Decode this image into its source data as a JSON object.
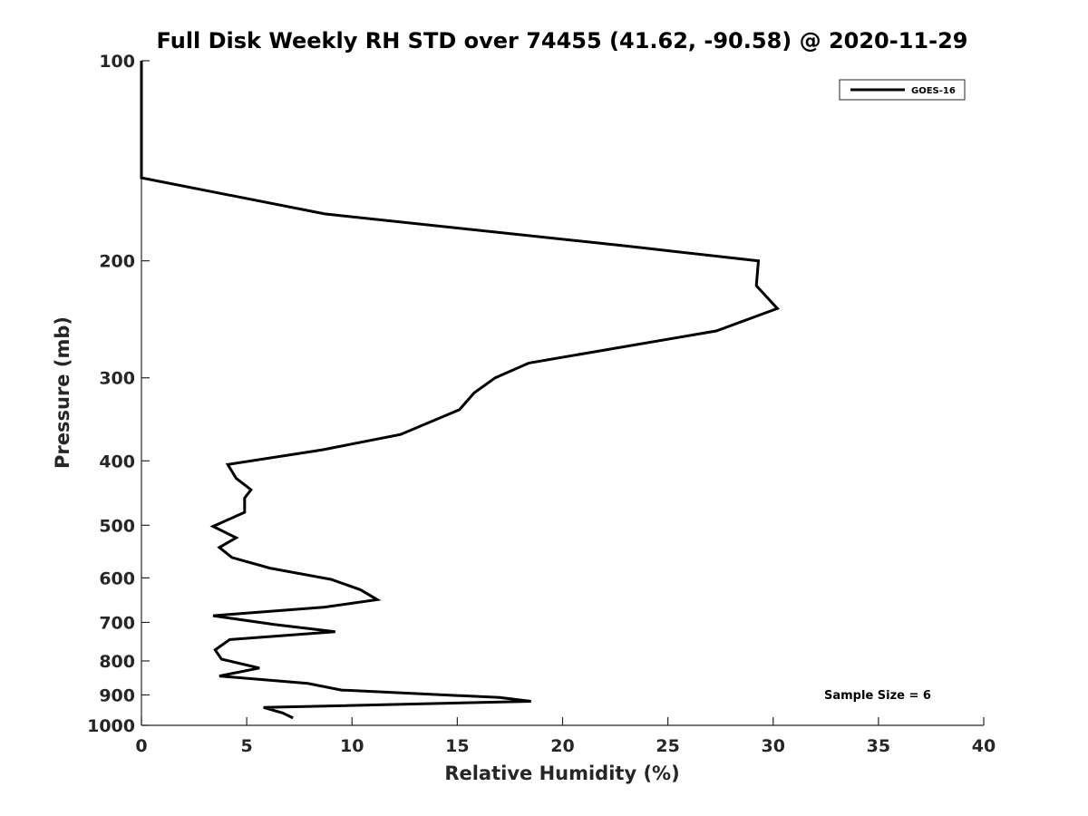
{
  "chart_data": {
    "type": "line",
    "title": "Full Disk Weekly RH STD over 74455 (41.62, -90.58) @ 2020-11-29",
    "xlabel": "Relative Humidity (%)",
    "ylabel": "Pressure (mb)",
    "xlim": [
      0,
      40
    ],
    "ylim": [
      100,
      1000
    ],
    "yscale": "log",
    "ydirection": "reverse",
    "xticks": [
      0,
      5,
      10,
      15,
      20,
      25,
      30,
      35,
      40
    ],
    "yticks": [
      100,
      200,
      300,
      400,
      500,
      600,
      700,
      800,
      900,
      1000
    ],
    "legend": {
      "position": "top-right",
      "entries": [
        "GOES-16"
      ]
    },
    "annotation": "Sample Size = 6",
    "series": [
      {
        "name": "GOES-16",
        "color": "#000000",
        "points": [
          [
            0,
            100
          ],
          [
            0,
            115
          ],
          [
            0,
            130
          ],
          [
            0,
            150
          ],
          [
            8.7,
            170
          ],
          [
            23,
            190
          ],
          [
            29.3,
            200
          ],
          [
            29.2,
            218
          ],
          [
            30.2,
            236
          ],
          [
            27.3,
            255
          ],
          [
            18.4,
            285
          ],
          [
            16.8,
            300
          ],
          [
            15.8,
            316
          ],
          [
            15.1,
            335
          ],
          [
            12.3,
            365
          ],
          [
            8.6,
            385
          ],
          [
            4.1,
            405
          ],
          [
            4.5,
            425
          ],
          [
            5.2,
            442
          ],
          [
            4.9,
            455
          ],
          [
            4.9,
            478
          ],
          [
            3.4,
            502
          ],
          [
            4.5,
            522
          ],
          [
            3.7,
            540
          ],
          [
            4.3,
            559
          ],
          [
            6.1,
            580
          ],
          [
            9.0,
            603
          ],
          [
            10.4,
            625
          ],
          [
            11.2,
            647
          ],
          [
            8.7,
            664
          ],
          [
            3.4,
            684
          ],
          [
            6.3,
            705
          ],
          [
            9.2,
            723
          ],
          [
            4.2,
            743
          ],
          [
            3.5,
            770
          ],
          [
            3.8,
            795
          ],
          [
            5.6,
            820
          ],
          [
            3.7,
            843
          ],
          [
            7.9,
            865
          ],
          [
            9.5,
            885
          ],
          [
            17.0,
            908
          ],
          [
            18.5,
            920
          ],
          [
            5.8,
            940
          ],
          [
            6.7,
            958
          ],
          [
            7.2,
            975
          ]
        ]
      }
    ]
  }
}
